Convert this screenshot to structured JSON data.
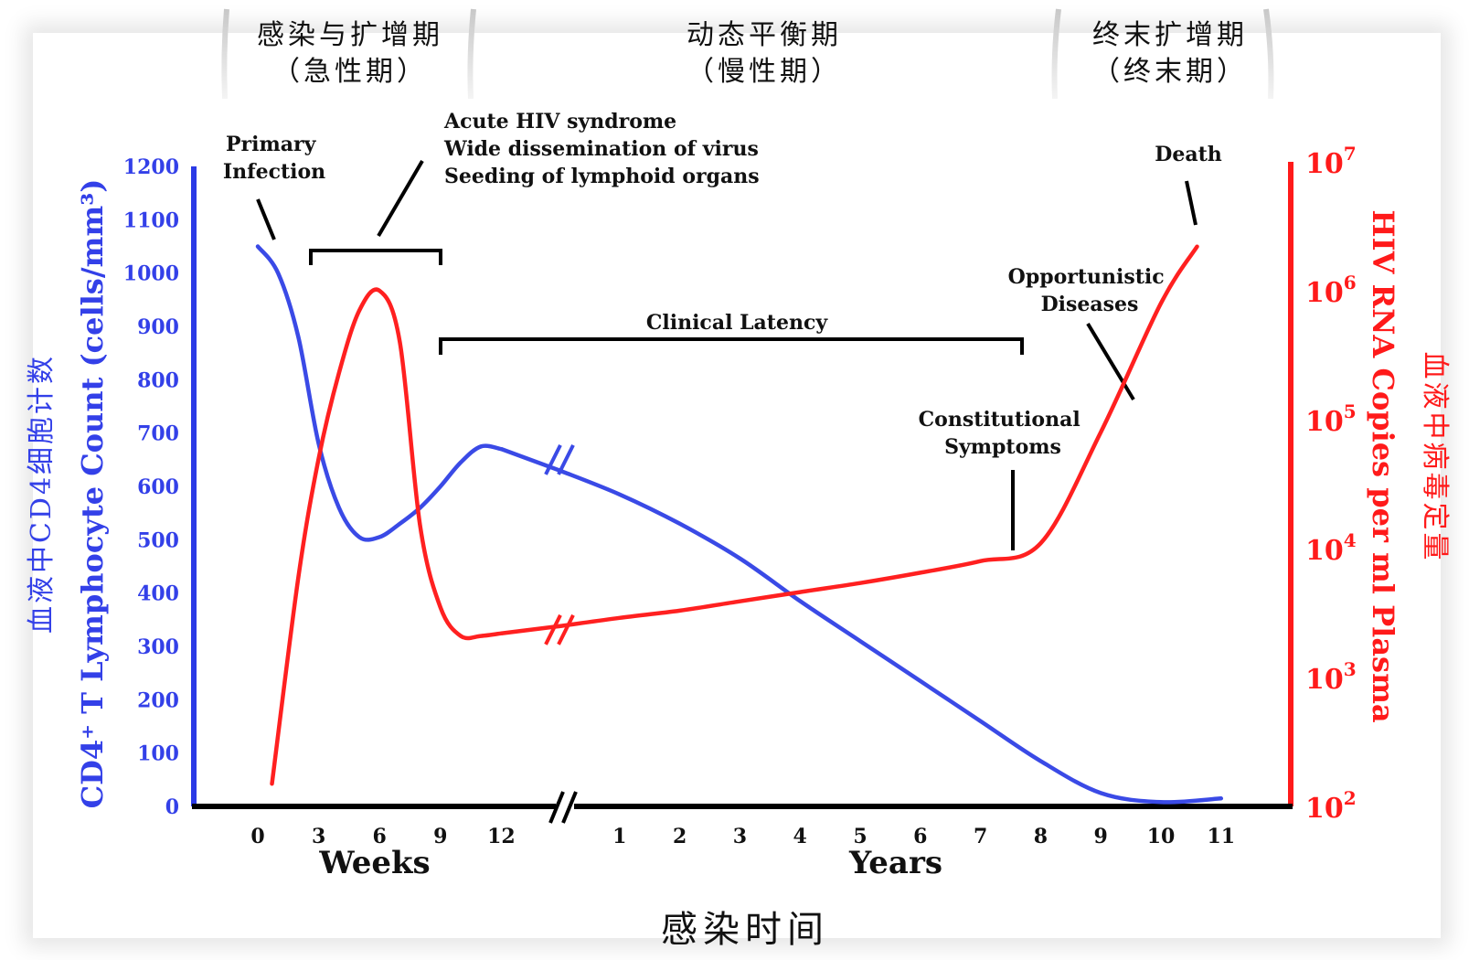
{
  "chart_data": {
    "type": "line",
    "phases": [
      {
        "title": "感染与扩增期",
        "subtitle": "（急性期）"
      },
      {
        "title": "动态平衡期",
        "subtitle": "（慢性期）"
      },
      {
        "title": "终末扩增期",
        "subtitle": "（终末期）"
      }
    ],
    "left_axis": {
      "label": "CD4⁺ T Lymphocyte Count (cells/mm³)",
      "label_cn": "血液中CD4细胞计数",
      "ticks": [
        0,
        100,
        200,
        300,
        400,
        500,
        600,
        700,
        800,
        900,
        1000,
        1100,
        1200
      ],
      "range": [
        0,
        1200
      ],
      "color": "#3340e8"
    },
    "right_axis": {
      "label": "HIV RNA Copies per ml Plasma",
      "label_cn": "血液中病毒定量",
      "scale": "log",
      "range": [
        100,
        10000000
      ],
      "ticks": [
        {
          "base": "10",
          "exp": "7"
        },
        {
          "base": "10",
          "exp": "6"
        },
        {
          "base": "10",
          "exp": "5"
        },
        {
          "base": "10",
          "exp": "4"
        },
        {
          "base": "10",
          "exp": "3"
        },
        {
          "base": "10",
          "exp": "2"
        }
      ],
      "color": "#ff1a1a"
    },
    "x_axis": {
      "weeks_ticks": [
        "0",
        "3",
        "6",
        "9",
        "12"
      ],
      "weeks_label": "Weeks",
      "years_ticks": [
        "1",
        "2",
        "3",
        "4",
        "5",
        "6",
        "7",
        "8",
        "9",
        "10",
        "11"
      ],
      "years_label": "Years",
      "title": "感染时间"
    },
    "series": [
      {
        "name": "CD4",
        "color": "#3a4ae6",
        "weeks": [
          [
            0,
            1050
          ],
          [
            1,
            1000
          ],
          [
            2,
            880
          ],
          [
            3,
            680
          ],
          [
            4,
            560
          ],
          [
            5,
            505
          ],
          [
            6,
            505
          ],
          [
            7,
            530
          ],
          [
            8,
            560
          ],
          [
            9,
            600
          ],
          [
            10,
            645
          ],
          [
            11,
            675
          ],
          [
            12,
            670
          ]
        ],
        "years": [
          [
            0,
            630
          ],
          [
            1,
            585
          ],
          [
            2,
            530
          ],
          [
            3,
            465
          ],
          [
            4,
            385
          ],
          [
            5,
            310
          ],
          [
            6,
            235
          ],
          [
            7,
            160
          ],
          [
            8,
            85
          ],
          [
            9,
            25
          ],
          [
            10,
            8
          ],
          [
            11,
            15
          ]
        ]
      },
      {
        "name": "HIV RNA",
        "color": "#ff2020",
        "weeks": [
          [
            0.7,
            150
          ],
          [
            2,
            6000
          ],
          [
            3,
            50000
          ],
          [
            4,
            230000
          ],
          [
            5,
            700000
          ],
          [
            6,
            1000000
          ],
          [
            7,
            400000
          ],
          [
            8,
            15000
          ],
          [
            9,
            3500
          ],
          [
            10,
            2100
          ],
          [
            11,
            2100
          ],
          [
            12,
            2200
          ]
        ],
        "years": [
          [
            0,
            2500
          ],
          [
            1,
            2900
          ],
          [
            2,
            3300
          ],
          [
            3,
            3900
          ],
          [
            4,
            4600
          ],
          [
            5,
            5400
          ],
          [
            6,
            6500
          ],
          [
            7,
            8000
          ],
          [
            8,
            11000
          ],
          [
            9,
            80000
          ],
          [
            10,
            800000
          ],
          [
            10.6,
            2200000
          ]
        ]
      }
    ],
    "annotations": [
      {
        "text": [
          "Primary",
          "Infection"
        ]
      },
      {
        "text": [
          "Acute HIV syndrome",
          "Wide dissemination of virus",
          "Seeding of lymphoid organs"
        ]
      },
      {
        "text": [
          "Clinical Latency"
        ]
      },
      {
        "text": [
          "Constitutional",
          "Symptoms"
        ]
      },
      {
        "text": [
          "Opportunistic",
          "Diseases"
        ]
      },
      {
        "text": [
          "Death"
        ]
      }
    ]
  }
}
